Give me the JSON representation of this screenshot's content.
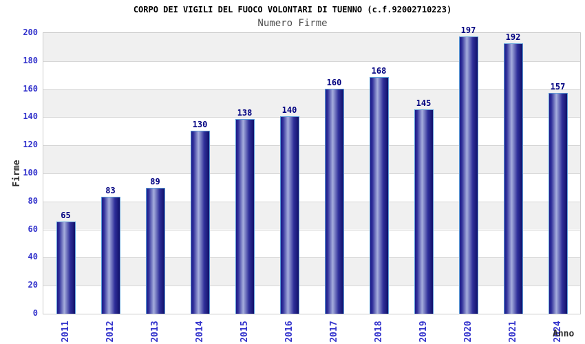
{
  "chart_data": {
    "type": "bar",
    "title": "CORPO DEI VIGILI DEL FUOCO VOLONTARI DI TUENNO (c.f.92002710223)",
    "subtitle": "Numero Firme",
    "xlabel": "Anno",
    "ylabel": "Firme",
    "categories": [
      "2011",
      "2012",
      "2013",
      "2014",
      "2015",
      "2016",
      "2017",
      "2018",
      "2019",
      "2020",
      "2021",
      "2024"
    ],
    "values": [
      65,
      83,
      89,
      130,
      138,
      140,
      160,
      168,
      145,
      197,
      192,
      157
    ],
    "ylim": [
      0,
      200
    ],
    "ytick_step": 20,
    "grid": "horizontal gridlines with alternating gray/white bands",
    "legend": "none",
    "value_labels": "above each bar"
  },
  "colors": {
    "title": "#000000",
    "subtitle": "#4d4d4d",
    "axis_title": "#2b2b2b",
    "tick_label": "#3333cc",
    "value_label": "#000080",
    "plot_border": "#c9c9c9",
    "grid_line": "#d6d6d6",
    "band_gray": "#f0f0f0",
    "bar_border": "#5e9fd9",
    "bar_dark_left": "#1b1b8a",
    "bar_light_center": "#a6aedd",
    "bar_dark_right": "#10106a"
  }
}
